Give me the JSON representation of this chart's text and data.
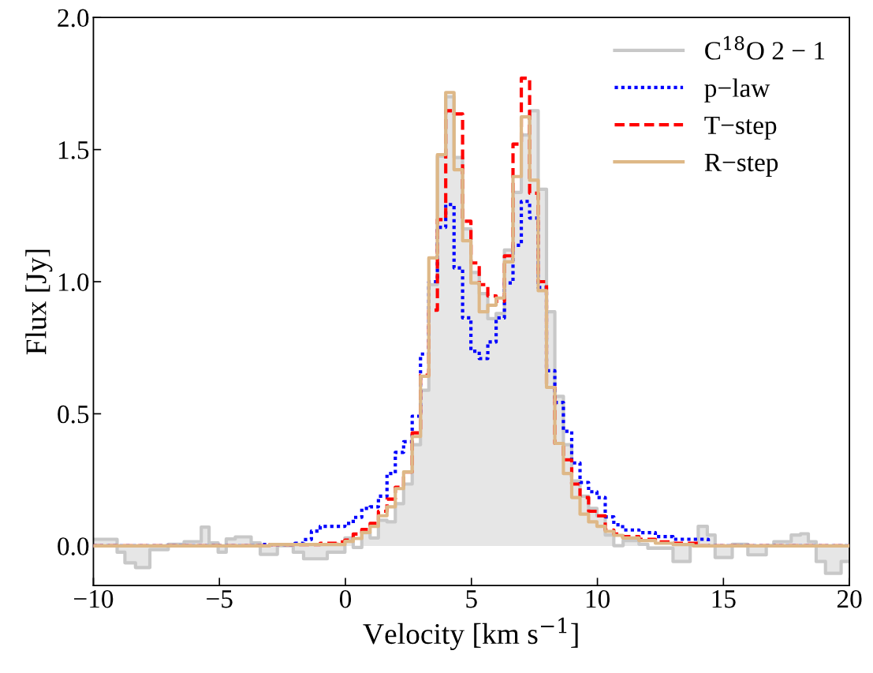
{
  "chart_data": {
    "type": "step",
    "xlabel": "Velocity [km s$^{−1}$]",
    "ylabel": "Flux [Jy]",
    "xlim": [
      -10,
      20
    ],
    "ylim": [
      -0.15,
      2.0
    ],
    "xticks": [
      {
        "value": -10,
        "label": "−10"
      },
      {
        "value": -5,
        "label": "−5"
      },
      0,
      5,
      10,
      15,
      20
    ],
    "yticks": [
      {
        "value": 0,
        "label": "0.0"
      },
      0.5,
      {
        "value": 1,
        "label": "1.0"
      },
      1.5,
      {
        "value": 2,
        "label": "2.0"
      }
    ],
    "grid": false,
    "legend": "top right",
    "series": [
      {
        "name": "C$^{18}$O 2 − 1",
        "type": "area",
        "color": "#c8c8c8",
        "line_style": "solid",
        "x": [
          -10,
          -9.06,
          -8.75,
          -8.33,
          -7.76,
          -7.03,
          -6.4,
          -5.72,
          -5.41,
          -5.05,
          -4.73,
          -4.37,
          -3.74,
          -3.38,
          -2.7,
          -2.07,
          -1.66,
          -0.72,
          -0.02,
          0.31,
          0.65,
          0.98,
          1.31,
          1.65,
          1.98,
          2.31,
          2.65,
          2.98,
          3.31,
          3.65,
          3.98,
          4.31,
          4.65,
          4.98,
          5.31,
          5.65,
          5.98,
          6.31,
          6.65,
          6.98,
          7.31,
          7.65,
          7.98,
          8.31,
          8.65,
          8.98,
          9.31,
          9.65,
          9.98,
          10.31,
          10.65,
          11.02,
          11.65,
          12.0,
          13.0,
          13.68,
          14.0,
          14.36,
          14.67,
          15.35,
          15.97,
          16.7,
          17.0,
          17.69,
          18.06,
          18.37,
          18.68,
          19.05,
          19.67,
          20
        ],
        "values": [
          0.025,
          -0.024,
          -0.064,
          -0.082,
          -0.014,
          0.006,
          0.016,
          0.071,
          0.011,
          -0.024,
          0.026,
          0.034,
          0.011,
          -0.032,
          0.001,
          -0.024,
          -0.049,
          -0.024,
          0.03,
          -0.006,
          0.05,
          0.03,
          0.097,
          0.091,
          0.16,
          0.234,
          0.383,
          0.589,
          0.989,
          1.475,
          1.7,
          1.47,
          1.2,
          1.035,
          0.955,
          0.86,
          0.88,
          1.12,
          1.338,
          1.555,
          1.647,
          1.35,
          0.886,
          0.566,
          0.383,
          0.246,
          0.188,
          0.142,
          0.114,
          0.041,
          0.001,
          0.02,
          0.006,
          -0.009,
          -0.059,
          0.006,
          0.074,
          0.041,
          -0.044,
          0.006,
          -0.034,
          0.001,
          0.016,
          0.041,
          0.046,
          0.016,
          -0.059,
          -0.104,
          -0.059,
          -0.059
        ]
      },
      {
        "name": "p−law",
        "color": "#0000ff",
        "line_style": "dotted",
        "x": [
          -10,
          -3.3,
          -2.0,
          -1.66,
          -1.35,
          -1.0,
          -0.35,
          -0.02,
          0.31,
          0.65,
          0.98,
          1.31,
          1.65,
          1.98,
          2.31,
          2.65,
          2.98,
          3.31,
          3.65,
          3.98,
          4.31,
          4.65,
          4.98,
          5.31,
          5.65,
          5.98,
          6.31,
          6.65,
          6.98,
          7.31,
          7.65,
          7.98,
          8.31,
          8.65,
          8.98,
          9.31,
          9.65,
          9.98,
          10.31,
          10.65,
          11.0,
          11.65,
          12.3,
          13.0,
          14.4,
          20
        ],
        "values": [
          0,
          0.005,
          0.01,
          0.024,
          0.056,
          0.074,
          0.074,
          0.085,
          0.108,
          0.142,
          0.148,
          0.188,
          0.274,
          0.354,
          0.394,
          0.491,
          0.726,
          1.0,
          1.206,
          1.292,
          1.052,
          0.863,
          0.737,
          0.709,
          0.772,
          0.863,
          0.995,
          1.138,
          1.304,
          1.241,
          0.978,
          0.663,
          0.543,
          0.434,
          0.314,
          0.24,
          0.205,
          0.183,
          0.11,
          0.08,
          0.06,
          0.05,
          0.035,
          0.025,
          0,
          0
        ]
      },
      {
        "name": "T−step",
        "color": "#ff0000",
        "line_style": "dashed",
        "x": [
          -10,
          -3.0,
          -1.0,
          -0.35,
          -0.02,
          0.31,
          0.65,
          0.98,
          1.31,
          1.65,
          1.98,
          2.31,
          2.65,
          2.98,
          3.31,
          3.65,
          3.98,
          4.31,
          4.65,
          4.98,
          5.31,
          5.65,
          5.98,
          6.31,
          6.65,
          6.98,
          7.31,
          7.65,
          7.98,
          8.31,
          8.65,
          8.98,
          9.31,
          9.65,
          9.98,
          10.31,
          10.65,
          11.0,
          11.65,
          12.3,
          13.0,
          14.0,
          20
        ],
        "values": [
          0,
          0.005,
          0.01,
          0.015,
          0.022,
          0.045,
          0.062,
          0.085,
          0.131,
          0.177,
          0.222,
          0.28,
          0.428,
          0.646,
          0.892,
          1.235,
          1.647,
          1.635,
          1.229,
          1.071,
          0.989,
          0.946,
          0.926,
          1.098,
          1.521,
          1.77,
          1.335,
          1.0,
          0.6,
          0.388,
          0.326,
          0.234,
          0.183,
          0.131,
          0.114,
          0.06,
          0.045,
          0.035,
          0.025,
          0.015,
          0.01,
          0,
          0
        ]
      },
      {
        "name": "R−step",
        "color": "#deb887",
        "line_style": "solid",
        "x": [
          -10,
          -3.0,
          -0.35,
          -0.02,
          0.31,
          0.65,
          0.98,
          1.31,
          1.65,
          1.98,
          2.31,
          2.65,
          2.98,
          3.31,
          3.65,
          3.98,
          4.31,
          4.65,
          4.98,
          5.31,
          5.65,
          5.98,
          6.31,
          6.65,
          6.98,
          7.31,
          7.65,
          7.98,
          8.31,
          8.65,
          8.98,
          9.31,
          9.65,
          9.98,
          10.31,
          10.65,
          11.0,
          11.65,
          12.3,
          13.0,
          13.8,
          20
        ],
        "values": [
          0,
          0.005,
          0.005,
          0.017,
          0.028,
          0.051,
          0.074,
          0.114,
          0.148,
          0.217,
          0.28,
          0.414,
          0.642,
          1.09,
          1.481,
          1.716,
          1.424,
          1.155,
          0.995,
          0.886,
          0.911,
          0.938,
          1.075,
          1.398,
          1.624,
          1.384,
          0.966,
          0.6,
          0.388,
          0.274,
          0.183,
          0.12,
          0.091,
          0.074,
          0.055,
          0.04,
          0.03,
          0.02,
          0.01,
          0.005,
          0,
          0
        ]
      }
    ]
  }
}
